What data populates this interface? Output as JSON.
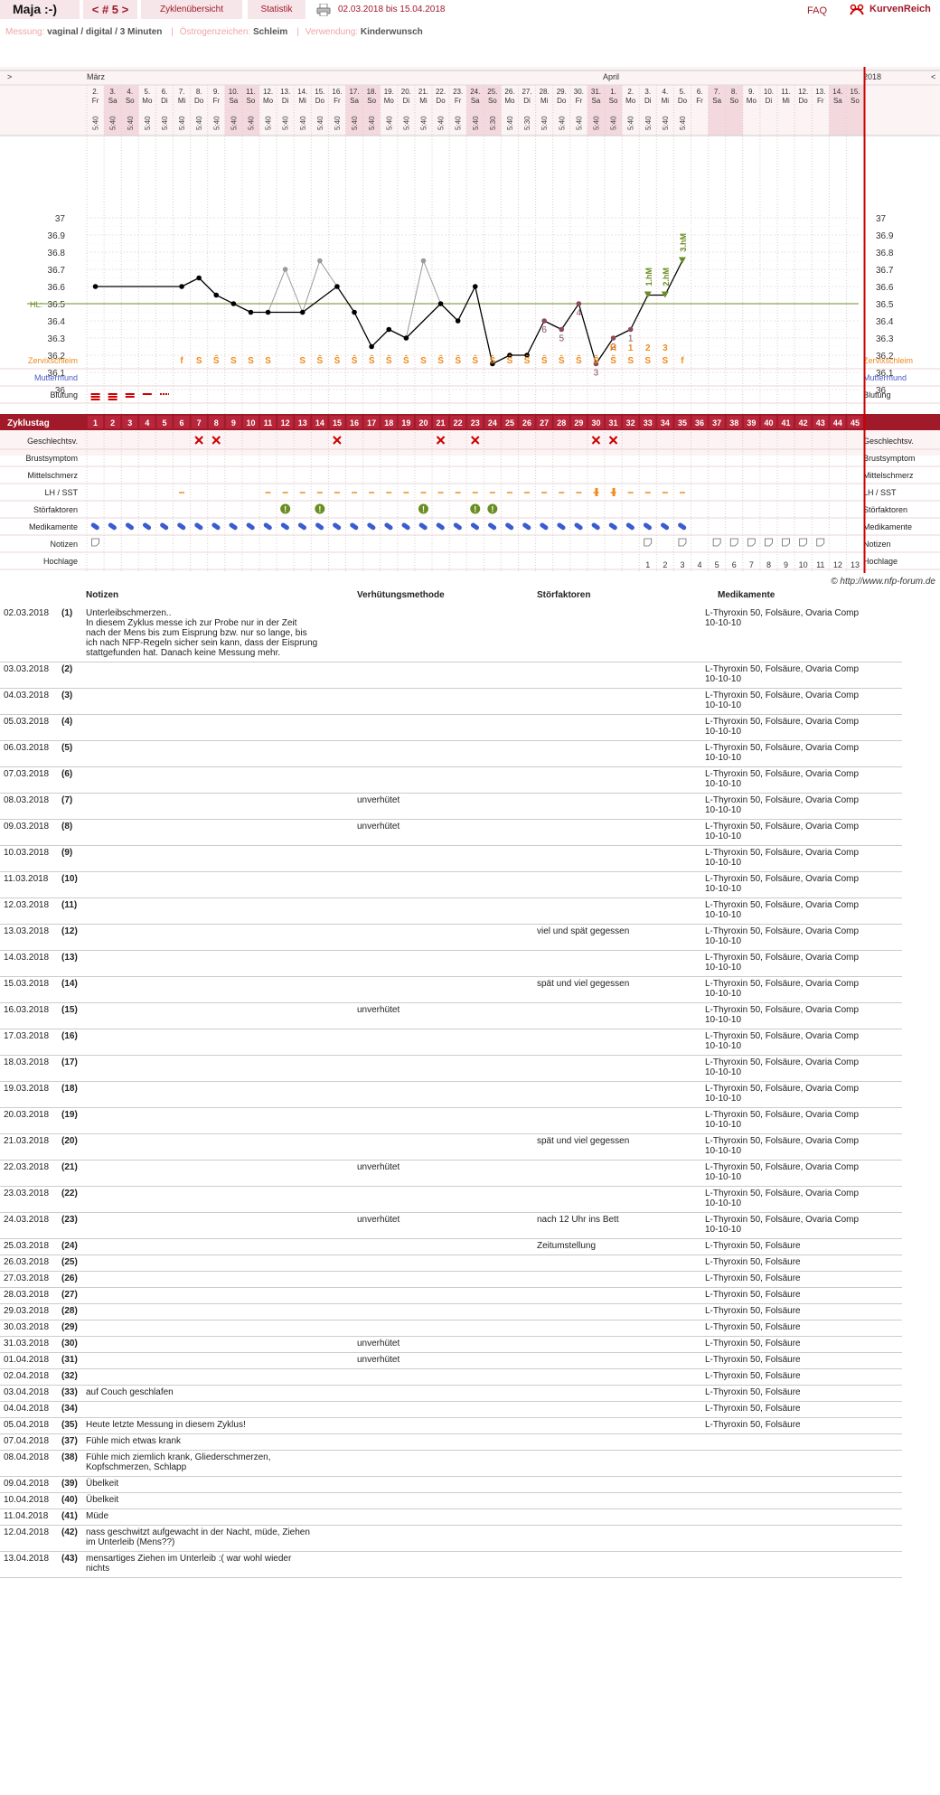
{
  "header": {
    "user_name": "Maja :-)",
    "cycle_nav": "< # 5 >",
    "tab_overview": "Zyklenübersicht",
    "tab_stats": "Statistik",
    "date_range": "02.03.2018 bis 15.04.2018",
    "faq": "FAQ",
    "logo_text": "KurvenReich"
  },
  "info": {
    "measure_label": "Messung:",
    "measure_value": "vaginal / digital / 3 Minuten",
    "estrogen_label": "Östrogenzeichen:",
    "estrogen_value": "Schleim",
    "usage_label": "Verwendung:",
    "usage_value": "Kinderwunsch"
  },
  "chart": {
    "nav_left": ">",
    "nav_right": "<",
    "month_1": "März",
    "month_2": "April",
    "year": "2018",
    "days": [
      "2.",
      "3.",
      "4.",
      "5.",
      "6.",
      "7.",
      "8.",
      "9.",
      "10.",
      "11.",
      "12.",
      "13.",
      "14.",
      "15.",
      "16.",
      "17.",
      "18.",
      "19.",
      "20.",
      "21.",
      "22.",
      "23.",
      "24.",
      "25.",
      "26.",
      "27.",
      "28.",
      "29.",
      "30.",
      "31.",
      "1.",
      "2.",
      "3.",
      "4.",
      "5.",
      "6.",
      "7.",
      "8.",
      "9.",
      "10.",
      "11.",
      "12.",
      "13.",
      "14.",
      "15."
    ],
    "weekdays": [
      "Fr",
      "Sa",
      "So",
      "Mo",
      "Di",
      "Mi",
      "Do",
      "Fr",
      "Sa",
      "So",
      "Mo",
      "Di",
      "Mi",
      "Do",
      "Fr",
      "Sa",
      "So",
      "Mo",
      "Di",
      "Mi",
      "Do",
      "Fr",
      "Sa",
      "So",
      "Mo",
      "Di",
      "Mi",
      "Do",
      "Fr",
      "Sa",
      "So",
      "Mo",
      "Di",
      "Mi",
      "Do",
      "Fr",
      "Sa",
      "So",
      "Mo",
      "Di",
      "Mi",
      "Do",
      "Fr",
      "Sa",
      "So"
    ],
    "times": [
      "5:40",
      "5:40",
      "5:40",
      "5:40",
      "5:40",
      "5:40",
      "5:40",
      "5:40",
      "5:40",
      "5:40",
      "5:40",
      "5:40",
      "5:40",
      "5:40",
      "5:40",
      "5:40",
      "5:40",
      "5:40",
      "5:40",
      "5:40",
      "5:40",
      "5:40",
      "5:40",
      "5:30",
      "5:40",
      "5:30",
      "5:40",
      "5:40",
      "5:40",
      "5:40",
      "5:40",
      "5:40",
      "5:40",
      "5:40",
      "5:40",
      "",
      "",
      "",
      "",
      "",
      "",
      "",
      "",
      "",
      ""
    ],
    "y_ticks": [
      "37",
      "36.9",
      "36.8",
      "36.7",
      "36.6",
      "36.5",
      "36.4",
      "36.3",
      "36.2",
      "36.1",
      "36"
    ],
    "hl_label": "HL:",
    "temperatures": [
      36.6,
      null,
      null,
      null,
      null,
      36.6,
      36.65,
      36.55,
      36.5,
      36.45,
      36.45,
      36.7,
      36.45,
      36.75,
      36.6,
      36.45,
      36.25,
      36.35,
      36.3,
      36.75,
      36.5,
      36.4,
      36.6,
      36.15,
      36.2,
      36.2,
      36.4,
      36.35,
      36.5,
      36.15,
      36.3,
      36.35,
      36.55,
      36.55,
      36.75
    ],
    "excluded_days": [
      12,
      14,
      20
    ],
    "hl_value": 36.5,
    "count_labels": [
      {
        "day": 27,
        "text": "6"
      },
      {
        "day": 28,
        "text": "5"
      },
      {
        "day": 29,
        "text": "4"
      },
      {
        "day": 30,
        "text": "3"
      },
      {
        "day": 31,
        "text": "2"
      },
      {
        "day": 32,
        "text": "1"
      }
    ],
    "hm_labels": [
      {
        "day": 33,
        "text": "1.hM"
      },
      {
        "day": 34,
        "text": "2.hM"
      },
      {
        "day": 35,
        "text": "3.hM"
      }
    ],
    "peak_labels": [
      {
        "day": 31,
        "text": "H"
      },
      {
        "day": 32,
        "text": "1"
      },
      {
        "day": 33,
        "text": "2"
      },
      {
        "day": 34,
        "text": "3"
      }
    ],
    "mucus": [
      "",
      "",
      "",
      "",
      "",
      "f",
      "S",
      "Ŝ",
      "S",
      "S",
      "S",
      "",
      "S",
      "Ŝ",
      "Ŝ",
      "Ŝ",
      "Ŝ",
      "Ŝ",
      "Ŝ",
      "S",
      "Ŝ",
      "Ŝ",
      "Ŝ",
      "Ŝ",
      "Ŝ",
      "Ŝ",
      "Ŝ",
      "Ŝ",
      "Ŝ",
      "Ŝ",
      "Ŝ",
      "S",
      "S",
      "S",
      "f",
      "",
      "",
      "",
      "",
      "",
      "",
      "",
      "",
      "",
      ""
    ],
    "row_labels": {
      "mucus": "Zervixschleim",
      "cervix": "Muttermund",
      "bleeding": "Blutung",
      "cycle_day": "Zyklustag",
      "sex": "Geschlechtsv.",
      "breast": "Brustsymptom",
      "pain": "Mittelschmerz",
      "lh": "LH / SST",
      "disturb": "Störfaktoren",
      "meds": "Medikamente",
      "notes": "Notizen",
      "high": "Hochlage"
    },
    "cycle_days": [
      "1",
      "2",
      "3",
      "4",
      "5",
      "6",
      "7",
      "8",
      "9",
      "10",
      "11",
      "12",
      "13",
      "14",
      "15",
      "16",
      "17",
      "18",
      "19",
      "20",
      "21",
      "22",
      "23",
      "24",
      "25",
      "26",
      "27",
      "28",
      "29",
      "30",
      "31",
      "32",
      "33",
      "34",
      "35",
      "36",
      "37",
      "38",
      "39",
      "40",
      "41",
      "42",
      "43",
      "44",
      "45"
    ],
    "sex_days": [
      7,
      8,
      15,
      21,
      23,
      30,
      31
    ],
    "disturb_days": [
      12,
      14,
      20,
      23,
      24
    ],
    "high_numbers": [
      "1",
      "2",
      "3",
      "4",
      "5",
      "6",
      "7",
      "8",
      "9",
      "10",
      "11",
      "12",
      "13"
    ],
    "copyright": "© http://www.nfp-forum.de"
  },
  "table": {
    "headers": {
      "notes": "Notizen",
      "verh": "Verhütungsmethode",
      "stoer": "Störfaktoren",
      "med": "Medikamente"
    },
    "rows": [
      {
        "date": "02.03.2018",
        "day": "(1)",
        "note": "Unterleibschmerzen..\nIn diesem Zyklus messe ich zur Probe nur in der Zeit\nnach der Mens bis zum Eisprung bzw. nur so lange, bis\nich nach NFP-Regeln sicher sein kann, dass der Eisprung\nstattgefunden hat. Danach keine Messung mehr.",
        "verh": "",
        "stoer": "",
        "med": "L-Thyroxin 50, Folsäure, Ovaria Comp\n10-10-10"
      },
      {
        "date": "03.03.2018",
        "day": "(2)",
        "note": "",
        "verh": "",
        "stoer": "",
        "med": "L-Thyroxin 50, Folsäure, Ovaria Comp\n10-10-10"
      },
      {
        "date": "04.03.2018",
        "day": "(3)",
        "note": "",
        "verh": "",
        "stoer": "",
        "med": "L-Thyroxin 50, Folsäure, Ovaria Comp\n10-10-10"
      },
      {
        "date": "05.03.2018",
        "day": "(4)",
        "note": "",
        "verh": "",
        "stoer": "",
        "med": "L-Thyroxin 50, Folsäure, Ovaria Comp\n10-10-10"
      },
      {
        "date": "06.03.2018",
        "day": "(5)",
        "note": "",
        "verh": "",
        "stoer": "",
        "med": "L-Thyroxin 50, Folsäure, Ovaria Comp\n10-10-10"
      },
      {
        "date": "07.03.2018",
        "day": "(6)",
        "note": "",
        "verh": "",
        "stoer": "",
        "med": "L-Thyroxin 50, Folsäure, Ovaria Comp\n10-10-10"
      },
      {
        "date": "08.03.2018",
        "day": "(7)",
        "note": "",
        "verh": "unverhütet",
        "stoer": "",
        "med": "L-Thyroxin 50, Folsäure, Ovaria Comp\n10-10-10"
      },
      {
        "date": "09.03.2018",
        "day": "(8)",
        "note": "",
        "verh": "unverhütet",
        "stoer": "",
        "med": "L-Thyroxin 50, Folsäure, Ovaria Comp\n10-10-10"
      },
      {
        "date": "10.03.2018",
        "day": "(9)",
        "note": "",
        "verh": "",
        "stoer": "",
        "med": "L-Thyroxin 50, Folsäure, Ovaria Comp\n10-10-10"
      },
      {
        "date": "11.03.2018",
        "day": "(10)",
        "note": "",
        "verh": "",
        "stoer": "",
        "med": "L-Thyroxin 50, Folsäure, Ovaria Comp\n10-10-10"
      },
      {
        "date": "12.03.2018",
        "day": "(11)",
        "note": "",
        "verh": "",
        "stoer": "",
        "med": "L-Thyroxin 50, Folsäure, Ovaria Comp\n10-10-10"
      },
      {
        "date": "13.03.2018",
        "day": "(12)",
        "note": "",
        "verh": "",
        "stoer": "viel und spät gegessen",
        "med": "L-Thyroxin 50, Folsäure, Ovaria Comp\n10-10-10"
      },
      {
        "date": "14.03.2018",
        "day": "(13)",
        "note": "",
        "verh": "",
        "stoer": "",
        "med": "L-Thyroxin 50, Folsäure, Ovaria Comp\n10-10-10"
      },
      {
        "date": "15.03.2018",
        "day": "(14)",
        "note": "",
        "verh": "",
        "stoer": "spät und viel gegessen",
        "med": "L-Thyroxin 50, Folsäure, Ovaria Comp\n10-10-10"
      },
      {
        "date": "16.03.2018",
        "day": "(15)",
        "note": "",
        "verh": "unverhütet",
        "stoer": "",
        "med": "L-Thyroxin 50, Folsäure, Ovaria Comp\n10-10-10"
      },
      {
        "date": "17.03.2018",
        "day": "(16)",
        "note": "",
        "verh": "",
        "stoer": "",
        "med": "L-Thyroxin 50, Folsäure, Ovaria Comp\n10-10-10"
      },
      {
        "date": "18.03.2018",
        "day": "(17)",
        "note": "",
        "verh": "",
        "stoer": "",
        "med": "L-Thyroxin 50, Folsäure, Ovaria Comp\n10-10-10"
      },
      {
        "date": "19.03.2018",
        "day": "(18)",
        "note": "",
        "verh": "",
        "stoer": "",
        "med": "L-Thyroxin 50, Folsäure, Ovaria Comp\n10-10-10"
      },
      {
        "date": "20.03.2018",
        "day": "(19)",
        "note": "",
        "verh": "",
        "stoer": "",
        "med": "L-Thyroxin 50, Folsäure, Ovaria Comp\n10-10-10"
      },
      {
        "date": "21.03.2018",
        "day": "(20)",
        "note": "",
        "verh": "",
        "stoer": "spät und viel gegessen",
        "med": "L-Thyroxin 50, Folsäure, Ovaria Comp\n10-10-10"
      },
      {
        "date": "22.03.2018",
        "day": "(21)",
        "note": "",
        "verh": "unverhütet",
        "stoer": "",
        "med": "L-Thyroxin 50, Folsäure, Ovaria Comp\n10-10-10"
      },
      {
        "date": "23.03.2018",
        "day": "(22)",
        "note": "",
        "verh": "",
        "stoer": "",
        "med": "L-Thyroxin 50, Folsäure, Ovaria Comp\n10-10-10"
      },
      {
        "date": "24.03.2018",
        "day": "(23)",
        "note": "",
        "verh": "unverhütet",
        "stoer": "nach 12 Uhr ins Bett",
        "med": "L-Thyroxin 50, Folsäure, Ovaria Comp\n10-10-10"
      },
      {
        "date": "25.03.2018",
        "day": "(24)",
        "note": "",
        "verh": "",
        "stoer": "Zeitumstellung",
        "med": "L-Thyroxin 50, Folsäure"
      },
      {
        "date": "26.03.2018",
        "day": "(25)",
        "note": "",
        "verh": "",
        "stoer": "",
        "med": "L-Thyroxin 50, Folsäure"
      },
      {
        "date": "27.03.2018",
        "day": "(26)",
        "note": "",
        "verh": "",
        "stoer": "",
        "med": "L-Thyroxin 50, Folsäure"
      },
      {
        "date": "28.03.2018",
        "day": "(27)",
        "note": "",
        "verh": "",
        "stoer": "",
        "med": "L-Thyroxin 50, Folsäure"
      },
      {
        "date": "29.03.2018",
        "day": "(28)",
        "note": "",
        "verh": "",
        "stoer": "",
        "med": "L-Thyroxin 50, Folsäure"
      },
      {
        "date": "30.03.2018",
        "day": "(29)",
        "note": "",
        "verh": "",
        "stoer": "",
        "med": "L-Thyroxin 50, Folsäure"
      },
      {
        "date": "31.03.2018",
        "day": "(30)",
        "note": "",
        "verh": "unverhütet",
        "stoer": "",
        "med": "L-Thyroxin 50, Folsäure"
      },
      {
        "date": "01.04.2018",
        "day": "(31)",
        "note": "",
        "verh": "unverhütet",
        "stoer": "",
        "med": "L-Thyroxin 50, Folsäure"
      },
      {
        "date": "02.04.2018",
        "day": "(32)",
        "note": "",
        "verh": "",
        "stoer": "",
        "med": "L-Thyroxin 50, Folsäure"
      },
      {
        "date": "03.04.2018",
        "day": "(33)",
        "note": "auf Couch geschlafen",
        "verh": "",
        "stoer": "",
        "med": "L-Thyroxin 50, Folsäure"
      },
      {
        "date": "04.04.2018",
        "day": "(34)",
        "note": "",
        "verh": "",
        "stoer": "",
        "med": "L-Thyroxin 50, Folsäure"
      },
      {
        "date": "05.04.2018",
        "day": "(35)",
        "note": "Heute letzte Messung in diesem Zyklus!",
        "verh": "",
        "stoer": "",
        "med": "L-Thyroxin 50, Folsäure"
      },
      {
        "date": "07.04.2018",
        "day": "(37)",
        "note": "Fühle mich etwas krank",
        "verh": "",
        "stoer": "",
        "med": ""
      },
      {
        "date": "08.04.2018",
        "day": "(38)",
        "note": "Fühle mich ziemlich krank, Gliederschmerzen,\nKopfschmerzen, Schlapp",
        "verh": "",
        "stoer": "",
        "med": ""
      },
      {
        "date": "09.04.2018",
        "day": "(39)",
        "note": "Übelkeit",
        "verh": "",
        "stoer": "",
        "med": ""
      },
      {
        "date": "10.04.2018",
        "day": "(40)",
        "note": "Übelkeit",
        "verh": "",
        "stoer": "",
        "med": ""
      },
      {
        "date": "11.04.2018",
        "day": "(41)",
        "note": "Müde",
        "verh": "",
        "stoer": "",
        "med": ""
      },
      {
        "date": "12.04.2018",
        "day": "(42)",
        "note": "nass geschwitzt aufgewacht in der Nacht, müde, Ziehen\nim Unterleib (Mens??)",
        "verh": "",
        "stoer": "",
        "med": ""
      },
      {
        "date": "13.04.2018",
        "day": "(43)",
        "note": "mensartiges Ziehen im Unterleib :( war wohl wieder\nnichts",
        "verh": "",
        "stoer": "",
        "med": ""
      }
    ]
  },
  "colors": {
    "accent": "#a01a2a",
    "pink_bg": "#f6e6e9",
    "mucus": "#f08a1c",
    "cervix": "#4a5acb",
    "green": "#6b8e23",
    "red": "#cc0000"
  }
}
